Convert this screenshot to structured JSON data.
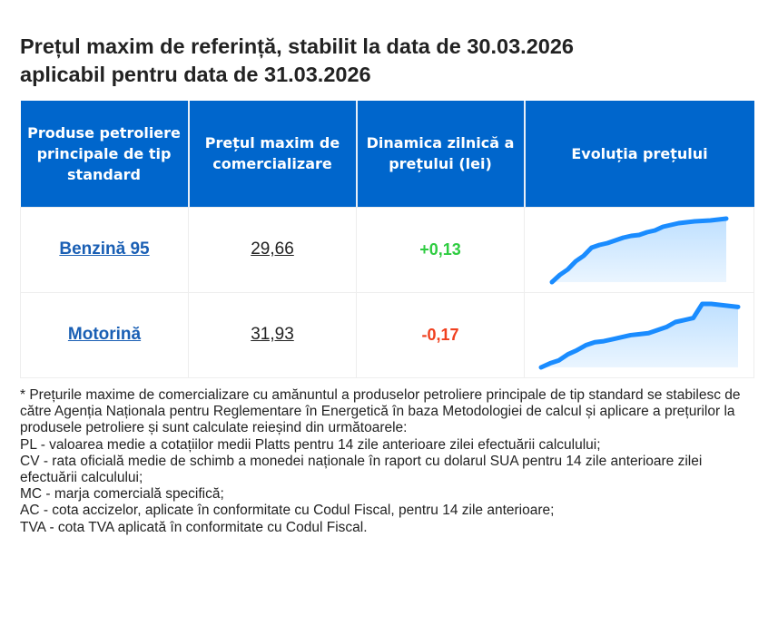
{
  "title": {
    "line1": "Prețul maxim de referință, stabilit la data de 30.03.2026",
    "line2": "aplicabil pentru data de 31.03.2026"
  },
  "table": {
    "headers": [
      "Produse petroliere principale de tip standard",
      "Prețul maxim de comercializare",
      "Dinamica zilnică a prețului (lei)",
      "Evoluția prețului"
    ],
    "rows": [
      {
        "product": "Benzină 95",
        "price": "29,66",
        "delta": "+0,13",
        "trend": "up"
      },
      {
        "product": "Motorină",
        "price": "31,93",
        "delta": "-0,17",
        "trend": "down"
      }
    ]
  },
  "colors": {
    "header_bg": "#0066cc",
    "link": "#1a5fb4",
    "positive": "#2ecc40",
    "negative": "#f0401f",
    "spark_line": "#1a8cff",
    "spark_fill": "#bfe0ff"
  },
  "sparklines": [
    {
      "name": "benzina-95-evolution",
      "values": [
        0,
        0.8,
        1.4,
        2.3,
        2.9,
        3.8,
        4.1,
        4.3,
        4.6,
        4.9,
        5.1,
        5.2,
        5.5,
        5.7,
        6.1,
        6.3,
        6.5,
        6.6,
        6.7,
        6.75,
        6.8,
        6.9,
        7.0
      ]
    },
    {
      "name": "motorina-evolution",
      "values": [
        0,
        0.4,
        0.7,
        1.3,
        1.7,
        2.2,
        2.5,
        2.6,
        2.8,
        3.0,
        3.2,
        3.3,
        3.4,
        3.7,
        4.0,
        4.5,
        4.7,
        4.9,
        6.3,
        6.3,
        6.2,
        6.1,
        6.0
      ]
    }
  ],
  "notes": [
    "* Prețurile maxime de comercializare cu amănuntul a produselor petroliere principale de tip standard se stabilesc de către Agenția Naționala pentru Reglementare în Energetică în baza Metodologiei de calcul și aplicare a prețurilor la produsele petroliere și sunt calculate reieșind din următoarele:",
    "PL - valoarea medie a cotațiilor medii Platts pentru 14 zile anterioare zilei efectuării calculului;",
    "CV - rata oficială medie de schimb a monedei naționale în raport cu dolarul SUA pentru 14 zile anterioare zilei efectuării calculului;",
    "MC - marja comercială specifică;",
    "AC - cota accizelor, aplicate în conformitate cu Codul Fiscal, pentru 14 zile anterioare;",
    "TVA - cota TVA aplicată în conformitate cu Codul Fiscal."
  ]
}
